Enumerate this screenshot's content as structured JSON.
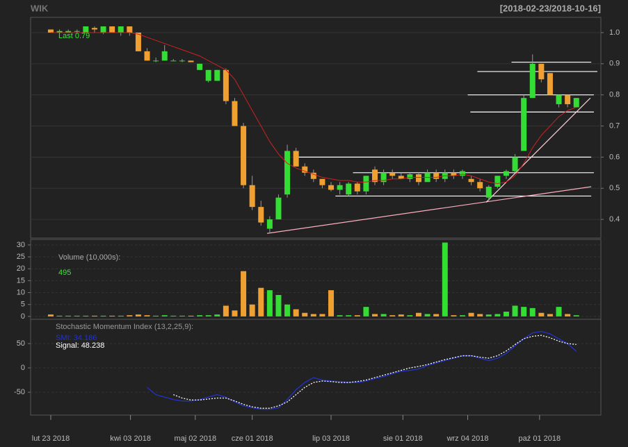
{
  "chart_data": [
    {
      "type": "candlestick",
      "title": "WIK",
      "subtitle": "[2018-02-23/2018-10-16]",
      "annotation": "Last 0.79",
      "up_color": "#33dd33",
      "down_color": "#f0a030",
      "ma_color": "#cc2222",
      "xlim": [
        -2.3,
        62.8
      ],
      "ylim": [
        0.34,
        1.049
      ],
      "yticks": [
        0.4,
        0.5,
        0.6,
        0.7,
        0.8,
        0.9,
        {
          "value": 1,
          "label": "1.0"
        }
      ],
      "grid": true,
      "open": [
        1.01,
        1.0,
        1.0,
        1.005,
        1.0,
        1.015,
        1.0,
        1.02,
        1.0,
        1.02,
        1.0,
        0.94,
        0.91,
        0.91,
        0.91,
        0.91,
        0.91,
        0.88,
        0.845,
        0.845,
        0.88,
        0.78,
        0.7,
        0.51,
        0.44,
        0.37,
        0.4,
        0.48,
        0.62,
        0.57,
        0.55,
        0.53,
        0.51,
        0.495,
        0.48,
        0.515,
        0.49,
        0.56,
        0.52,
        0.55,
        0.54,
        0.53,
        0.545,
        0.52,
        0.55,
        0.53,
        0.55,
        0.54,
        0.53,
        0.52,
        0.47,
        0.505,
        0.54,
        0.555,
        0.62,
        0.79,
        0.9,
        0.87,
        0.77,
        0.8,
        0.76
      ],
      "high": [
        1.01,
        1.01,
        1.01,
        1.01,
        1.02,
        1.02,
        1.02,
        1.02,
        1.02,
        1.02,
        1.0,
        0.95,
        0.92,
        0.96,
        0.915,
        0.915,
        0.91,
        0.9,
        0.88,
        0.88,
        0.885,
        0.79,
        0.71,
        0.54,
        0.46,
        0.41,
        0.48,
        0.64,
        0.63,
        0.58,
        0.56,
        0.53,
        0.52,
        0.52,
        0.52,
        0.52,
        0.54,
        0.57,
        0.56,
        0.56,
        0.55,
        0.55,
        0.55,
        0.56,
        0.56,
        0.56,
        0.56,
        0.56,
        0.54,
        0.53,
        0.51,
        0.54,
        0.56,
        0.61,
        0.8,
        0.93,
        0.9,
        0.87,
        0.8,
        0.8,
        0.79
      ],
      "low": [
        1.0,
        0.995,
        1.0,
        1.0,
        1.0,
        1.0,
        0.995,
        1.0,
        0.99,
        0.99,
        0.94,
        0.91,
        0.905,
        0.91,
        0.91,
        0.905,
        0.905,
        0.88,
        0.84,
        0.845,
        0.77,
        0.7,
        0.5,
        0.43,
        0.38,
        0.355,
        0.4,
        0.47,
        0.57,
        0.54,
        0.52,
        0.5,
        0.49,
        0.48,
        0.475,
        0.48,
        0.48,
        0.51,
        0.51,
        0.53,
        0.53,
        0.52,
        0.51,
        0.52,
        0.52,
        0.52,
        0.53,
        0.53,
        0.51,
        0.49,
        0.46,
        0.5,
        0.53,
        0.55,
        0.62,
        0.79,
        0.84,
        0.8,
        0.76,
        0.76,
        0.76
      ],
      "close": [
        1.0,
        1.005,
        1.005,
        1.005,
        1.02,
        1.01,
        1.02,
        1.0,
        1.02,
        1.0,
        0.94,
        0.91,
        0.91,
        0.94,
        0.91,
        0.91,
        0.905,
        0.9,
        0.88,
        0.88,
        0.78,
        0.7,
        0.51,
        0.44,
        0.39,
        0.4,
        0.47,
        0.62,
        0.57,
        0.55,
        0.53,
        0.51,
        0.495,
        0.51,
        0.515,
        0.49,
        0.54,
        0.52,
        0.55,
        0.54,
        0.53,
        0.545,
        0.52,
        0.55,
        0.53,
        0.55,
        0.54,
        0.555,
        0.52,
        0.5,
        0.505,
        0.54,
        0.555,
        0.6,
        0.79,
        0.9,
        0.85,
        0.8,
        0.8,
        0.77,
        0.79
      ],
      "ma": [
        1.0,
        1.0,
        1.0,
        1.0,
        1.0,
        1.0,
        1.0,
        1.0,
        1.0,
        1.0,
        0.995,
        0.985,
        0.975,
        0.965,
        0.955,
        0.945,
        0.935,
        0.925,
        0.91,
        0.895,
        0.88,
        0.85,
        0.8,
        0.75,
        0.7,
        0.65,
        0.61,
        0.58,
        0.565,
        0.555,
        0.545,
        0.535,
        0.53,
        0.525,
        0.525,
        0.52,
        0.52,
        0.525,
        0.525,
        0.53,
        0.53,
        0.535,
        0.535,
        0.535,
        0.535,
        0.54,
        0.54,
        0.545,
        0.54,
        0.53,
        0.52,
        0.515,
        0.52,
        0.54,
        0.58,
        0.63,
        0.67,
        0.7,
        0.73,
        0.75,
        0.76
      ],
      "lines": [
        {
          "x": [
            52.6,
            61.7
          ],
          "y": [
            0.905,
            0.905
          ],
          "color": "#ffffff"
        },
        {
          "x": [
            48.7,
            62.4
          ],
          "y": [
            0.875,
            0.875
          ],
          "color": "#ffffff"
        },
        {
          "x": [
            47.6,
            62.0
          ],
          "y": [
            0.8,
            0.8
          ],
          "color": "#ffffff"
        },
        {
          "x": [
            47.9,
            62.0
          ],
          "y": [
            0.745,
            0.745
          ],
          "color": "#ffffff"
        },
        {
          "x": [
            28.1,
            61.7
          ],
          "y": [
            0.6,
            0.6
          ],
          "color": "#ffffff"
        },
        {
          "x": [
            34.5,
            62.0
          ],
          "y": [
            0.55,
            0.55
          ],
          "color": "#ffffff"
        },
        {
          "x": [
            32.5,
            61.7
          ],
          "y": [
            0.475,
            0.475
          ],
          "color": "#ffffff"
        },
        {
          "x": [
            24.7,
            61.7
          ],
          "y": [
            0.355,
            0.505
          ],
          "color": "#ffb0c0"
        },
        {
          "x": [
            49.7,
            61.6
          ],
          "y": [
            0.455,
            0.79
          ],
          "color": "#ffd0d8"
        }
      ]
    },
    {
      "type": "bar",
      "annotation": "Volume (10,000s):",
      "last_label": "495",
      "xlim": [
        -2.3,
        62.8
      ],
      "ylim": [
        -1.2,
        32.3
      ],
      "yticks": [
        0,
        5,
        10,
        15,
        20,
        25,
        30
      ],
      "grid": true,
      "values": [
        0.8,
        0.3,
        0.3,
        0.3,
        0.3,
        0.3,
        0.3,
        0.3,
        0.3,
        0.5,
        0.8,
        0.5,
        0.3,
        0.5,
        0.3,
        0.3,
        0.3,
        0.5,
        0.5,
        0.8,
        4.5,
        2.5,
        19,
        5,
        12,
        11,
        9,
        5,
        3,
        1.5,
        1,
        1,
        11,
        0.5,
        0.5,
        0.5,
        4,
        1,
        1,
        0.5,
        0.8,
        0.5,
        1.5,
        1,
        1,
        31,
        0.5,
        0.5,
        1.5,
        1,
        0.8,
        1,
        2,
        4.5,
        4,
        3.5,
        1.5,
        1,
        4,
        1,
        0.5
      ]
    },
    {
      "type": "line",
      "annotation": "Stochastic Momentum Index (13,2,25,9):",
      "xlim": [
        -2.3,
        62.8
      ],
      "ylim": [
        -97,
        100
      ],
      "yticks": [
        -50,
        0,
        50
      ],
      "grid": true,
      "xticks": [
        {
          "value": 0,
          "label": "lut 23 2018"
        },
        {
          "value": 9.1,
          "label": "kwi 03 2018"
        },
        {
          "value": 16.5,
          "label": "maj 02 2018"
        },
        {
          "value": 23,
          "label": "cze 01 2018"
        },
        {
          "value": 32,
          "label": "lip 03 2018"
        },
        {
          "value": 40.2,
          "label": "sie 01 2018"
        },
        {
          "value": 47.6,
          "label": "wrz 04 2018"
        },
        {
          "value": 55.8,
          "label": "paź 01 2018"
        }
      ],
      "series": [
        {
          "name": "SMI",
          "label": "SMI: 34.186",
          "color": "#2233cc",
          "dash": false,
          "values": [
            null,
            null,
            null,
            null,
            null,
            null,
            null,
            null,
            null,
            null,
            null,
            -40,
            -55,
            -60,
            -65,
            -68,
            -68,
            -65,
            -60,
            -55,
            -60,
            -70,
            -78,
            -82,
            -85,
            -85,
            -82,
            -65,
            -45,
            -30,
            -20,
            -25,
            -27,
            -28,
            -30,
            -30,
            -27,
            -22,
            -18,
            -12,
            -7,
            -5,
            -2,
            5,
            10,
            15,
            20,
            25,
            25,
            20,
            15,
            20,
            30,
            45,
            60,
            72,
            75,
            70,
            60,
            50,
            34.186
          ]
        },
        {
          "name": "Signal",
          "label": "Signal: 48.238",
          "color": "#ffffff",
          "dash": true,
          "values": [
            null,
            null,
            null,
            null,
            null,
            null,
            null,
            null,
            null,
            null,
            null,
            null,
            null,
            null,
            -55,
            -62,
            -66,
            -66,
            -64,
            -62,
            -62,
            -68,
            -75,
            -80,
            -83,
            -83,
            -78,
            -70,
            -55,
            -40,
            -30,
            -27,
            -28,
            -30,
            -30,
            -28,
            -25,
            -20,
            -15,
            -10,
            -5,
            0,
            3,
            7,
            12,
            17,
            21,
            25,
            25,
            22,
            20,
            25,
            35,
            48,
            60,
            65,
            67,
            62,
            55,
            50,
            48.238
          ]
        }
      ]
    }
  ]
}
